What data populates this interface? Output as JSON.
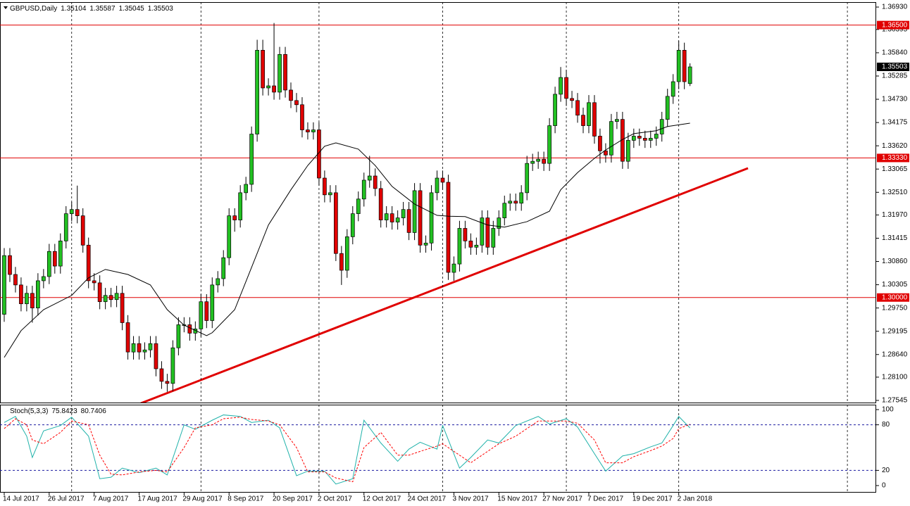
{
  "chart_data": [
    {
      "type": "candlestick",
      "title": "GBPUSD,Daily",
      "xlim": [
        -0.75,
        155
      ],
      "ylim": [
        1.27494,
        1.37048
      ],
      "up_color": "#22c022",
      "down_color": "#e00000",
      "xgrid": [
        12,
        35,
        56,
        78,
        100,
        120,
        150
      ],
      "yticks": [
        {
          "value": 1.3693,
          "label": "1.36930"
        },
        1.36395,
        {
          "value": 1.3584,
          "label": "1.35840"
        },
        1.35285,
        {
          "value": 1.3473,
          "label": "1.34730"
        },
        1.34175,
        {
          "value": 1.3362,
          "label": "1.33620"
        },
        1.33065,
        {
          "value": 1.3251,
          "label": "1.32510"
        },
        {
          "value": 1.3197,
          "label": "1.31970"
        },
        1.31415,
        {
          "value": 1.3086,
          "label": "1.30860"
        },
        1.30305,
        {
          "value": 1.2975,
          "label": "1.29750"
        },
        1.29195,
        {
          "value": 1.2864,
          "label": "1.28640"
        },
        {
          "value": 1.281,
          "label": "1.28100"
        },
        1.27545
      ],
      "hlines": [
        {
          "value": 1.365,
          "label": "1.36500"
        },
        {
          "value": 1.3333,
          "label": "1.33330"
        },
        {
          "value": 1.3,
          "label": "1.30000"
        }
      ],
      "hline_color": "#e00000",
      "open": [
        1.296,
        1.31,
        1.3055,
        1.303,
        1.2985,
        1.301,
        1.2975,
        1.304,
        1.305,
        1.311,
        1.3075,
        1.3135,
        1.32,
        1.321,
        1.3195,
        1.3125,
        1.304,
        1.3035,
        1.299,
        1.3005,
        1.2995,
        1.301,
        1.294,
        1.287,
        1.289,
        1.287,
        1.2875,
        1.289,
        1.283,
        1.28,
        1.2795,
        1.288,
        1.2935,
        1.2935,
        1.2915,
        1.2925,
        1.299,
        1.2945,
        1.303,
        1.3045,
        1.3095,
        1.3195,
        1.3185,
        1.325,
        1.327,
        1.339,
        1.359,
        1.35,
        1.3505,
        1.349,
        1.358,
        1.3495,
        1.347,
        1.346,
        1.34,
        1.3395,
        1.34,
        1.3285,
        1.3245,
        1.325,
        1.3105,
        1.3065,
        1.3145,
        1.32,
        1.3235,
        1.328,
        1.329,
        1.326,
        1.3185,
        1.32,
        1.318,
        1.319,
        1.321,
        1.3155,
        1.3255,
        1.3125,
        1.313,
        1.325,
        1.3285,
        1.3275,
        1.306,
        1.308,
        1.3165,
        1.3135,
        1.312,
        1.3125,
        1.319,
        1.312,
        1.3165,
        1.319,
        1.3225,
        1.323,
        1.3225,
        1.325,
        1.332,
        1.3325,
        1.333,
        1.332,
        1.341,
        1.3485,
        1.3525,
        1.3475,
        1.347,
        1.3435,
        1.341,
        1.3465,
        1.3385,
        1.335,
        1.334,
        1.342,
        1.3425,
        1.3325,
        1.3375,
        1.3385,
        1.338,
        1.3375,
        1.338,
        1.339,
        1.3425,
        1.348,
        1.3515,
        1.359,
        1.35104
      ],
      "high": [
        1.3118,
        1.3118,
        1.3073,
        1.3048,
        1.3028,
        1.3028,
        1.3058,
        1.3068,
        1.3128,
        1.3128,
        1.3153,
        1.3218,
        1.3228,
        1.3267,
        1.3213,
        1.3143,
        1.3058,
        1.3053,
        1.3023,
        1.3023,
        1.3028,
        1.3028,
        1.2958,
        1.2908,
        1.2908,
        1.2893,
        1.2908,
        1.2908,
        1.2848,
        1.2818,
        1.2898,
        1.2953,
        1.2953,
        1.2953,
        1.2943,
        1.3008,
        1.3008,
        1.3048,
        1.3063,
        1.3113,
        1.3213,
        1.3213,
        1.3268,
        1.3288,
        1.3408,
        1.3615,
        1.3615,
        1.3523,
        1.3655,
        1.3598,
        1.3598,
        1.3513,
        1.3488,
        1.3478,
        1.3418,
        1.3418,
        1.3418,
        1.3303,
        1.3268,
        1.3268,
        1.3123,
        1.3163,
        1.3218,
        1.3253,
        1.3298,
        1.3338,
        1.3308,
        1.3278,
        1.3218,
        1.3218,
        1.3208,
        1.3228,
        1.3228,
        1.3273,
        1.3273,
        1.3148,
        1.3268,
        1.3303,
        1.3303,
        1.3293,
        1.3098,
        1.3183,
        1.3183,
        1.3153,
        1.3143,
        1.3208,
        1.3208,
        1.3183,
        1.3208,
        1.3243,
        1.3248,
        1.3248,
        1.3268,
        1.3338,
        1.3343,
        1.3348,
        1.3348,
        1.3428,
        1.3503,
        1.355,
        1.3543,
        1.3493,
        1.3488,
        1.3453,
        1.3483,
        1.3483,
        1.3403,
        1.3368,
        1.3438,
        1.3443,
        1.3443,
        1.3393,
        1.3403,
        1.3403,
        1.3398,
        1.3398,
        1.3408,
        1.3443,
        1.3498,
        1.3533,
        1.3612,
        1.3608,
        1.35587
      ],
      "low": [
        1.2942,
        1.3037,
        1.3012,
        1.2967,
        1.2967,
        1.294,
        1.2957,
        1.3022,
        1.3032,
        1.3057,
        1.3057,
        1.3117,
        1.3182,
        1.3177,
        1.3107,
        1.3022,
        1.3017,
        1.2972,
        1.2972,
        1.2977,
        1.2977,
        1.2922,
        1.2852,
        1.2852,
        1.2852,
        1.2852,
        1.2857,
        1.2812,
        1.2782,
        1.2775,
        1.2777,
        1.2862,
        1.2917,
        1.2897,
        1.2897,
        1.2907,
        1.2927,
        1.2927,
        1.3012,
        1.3027,
        1.3077,
        1.3157,
        1.3167,
        1.3232,
        1.3252,
        1.3372,
        1.3482,
        1.3482,
        1.3472,
        1.3472,
        1.3477,
        1.3452,
        1.3442,
        1.3382,
        1.3377,
        1.3377,
        1.3267,
        1.3227,
        1.3227,
        1.3087,
        1.303,
        1.3047,
        1.3127,
        1.3182,
        1.3217,
        1.3262,
        1.3242,
        1.3167,
        1.3167,
        1.3162,
        1.3162,
        1.3172,
        1.3137,
        1.3137,
        1.3107,
        1.3107,
        1.3112,
        1.3232,
        1.3257,
        1.3042,
        1.304,
        1.3062,
        1.3117,
        1.3102,
        1.3102,
        1.3107,
        1.3102,
        1.3102,
        1.3147,
        1.3172,
        1.3207,
        1.3207,
        1.3207,
        1.3232,
        1.3302,
        1.3307,
        1.3302,
        1.3302,
        1.3392,
        1.3467,
        1.3457,
        1.3452,
        1.3417,
        1.3392,
        1.3392,
        1.3367,
        1.332,
        1.3322,
        1.3322,
        1.3402,
        1.3307,
        1.3307,
        1.3357,
        1.3362,
        1.3357,
        1.3357,
        1.3362,
        1.3372,
        1.3407,
        1.3462,
        1.3497,
        1.3497,
        1.35045
      ],
      "close": [
        1.31,
        1.3055,
        1.303,
        1.2985,
        1.301,
        1.2975,
        1.304,
        1.305,
        1.311,
        1.3075,
        1.3135,
        1.32,
        1.321,
        1.3195,
        1.3125,
        1.304,
        1.3035,
        1.299,
        1.3005,
        1.2995,
        1.301,
        1.294,
        1.287,
        1.289,
        1.287,
        1.2875,
        1.289,
        1.283,
        1.28,
        1.2795,
        1.288,
        1.2935,
        1.2935,
        1.2915,
        1.2925,
        1.299,
        1.2945,
        1.303,
        1.3045,
        1.3095,
        1.3195,
        1.3185,
        1.325,
        1.327,
        1.339,
        1.359,
        1.35,
        1.3505,
        1.349,
        1.358,
        1.3495,
        1.347,
        1.346,
        1.34,
        1.3395,
        1.34,
        1.3285,
        1.3245,
        1.325,
        1.3105,
        1.3065,
        1.3145,
        1.32,
        1.3235,
        1.328,
        1.329,
        1.326,
        1.3185,
        1.32,
        1.318,
        1.319,
        1.321,
        1.3155,
        1.3255,
        1.3125,
        1.313,
        1.325,
        1.3285,
        1.3275,
        1.306,
        1.308,
        1.3165,
        1.3135,
        1.312,
        1.3125,
        1.319,
        1.312,
        1.3165,
        1.319,
        1.3225,
        1.323,
        1.3225,
        1.325,
        1.332,
        1.3325,
        1.333,
        1.332,
        1.341,
        1.3485,
        1.3525,
        1.3475,
        1.347,
        1.3435,
        1.341,
        1.3465,
        1.3385,
        1.335,
        1.334,
        1.342,
        1.3425,
        1.3325,
        1.3375,
        1.3385,
        1.338,
        1.3375,
        1.338,
        1.339,
        1.3425,
        1.348,
        1.3515,
        1.359,
        1.3515,
        1.35503
      ],
      "ma": {
        "color": "#000000",
        "x": [
          0,
          3,
          7,
          12,
          15,
          18,
          22,
          26,
          29,
          32,
          36,
          37,
          41,
          43,
          47,
          51,
          54,
          57,
          59,
          63,
          66,
          69,
          73,
          77,
          79,
          82,
          86,
          89,
          93,
          97,
          99,
          102,
          105,
          107,
          110,
          112,
          116,
          118,
          122
        ],
        "values": [
          1.2857,
          1.2921,
          1.2971,
          1.3005,
          1.3047,
          1.3067,
          1.3055,
          1.303,
          1.2971,
          1.2934,
          1.2909,
          1.2916,
          1.2971,
          1.3038,
          1.3173,
          1.3257,
          1.3315,
          1.3361,
          1.3369,
          1.3354,
          1.3315,
          1.3265,
          1.3223,
          1.3196,
          1.3194,
          1.3193,
          1.3173,
          1.3168,
          1.3181,
          1.3206,
          1.3257,
          1.3298,
          1.3332,
          1.3352,
          1.3377,
          1.3391,
          1.3398,
          1.3408,
          1.3416
        ]
      }
    },
    {
      "type": "line",
      "title": "Stoch(5,3,3)",
      "xlim": [
        -0.75,
        155
      ],
      "ylim": [
        -9.3,
        106.5
      ],
      "xgrid": [
        12,
        35,
        56,
        78,
        100,
        120,
        150
      ],
      "yticks": [
        100,
        80,
        20,
        0
      ],
      "levels": [
        80,
        20
      ],
      "level_color": "#1a1aa0",
      "xticks": [
        {
          "value": 0,
          "label": "14 Jul 2017"
        },
        {
          "value": 8,
          "label": "26 Jul 2017"
        },
        {
          "value": 16,
          "label": "7 Aug 2017"
        },
        {
          "value": 24,
          "label": "17 Aug 2017"
        },
        {
          "value": 32,
          "label": "29 Aug 2017"
        },
        {
          "value": 40,
          "label": "8 Sep 2017"
        },
        {
          "value": 48,
          "label": "20 Sep 2017"
        },
        {
          "value": 56,
          "label": "2 Oct 2017"
        },
        {
          "value": 64,
          "label": "12 Oct 2017"
        },
        {
          "value": 72,
          "label": "24 Oct 2017"
        },
        {
          "value": 80,
          "label": "3 Nov 2017"
        },
        {
          "value": 88,
          "label": "15 Nov 2017"
        },
        {
          "value": 96,
          "label": "27 Nov 2017"
        },
        {
          "value": 104,
          "label": "7 Dec 2017"
        },
        {
          "value": 112,
          "label": "19 Dec 2017"
        },
        {
          "value": 120,
          "label": "2 Jan 2018"
        }
      ],
      "series": [
        {
          "color": "#20b2aa",
          "dashed": false,
          "x": [
            0,
            2,
            4,
            5,
            7,
            10,
            12,
            15,
            17,
            19,
            21,
            24,
            27,
            29,
            32,
            34,
            37,
            39,
            42,
            44,
            47,
            49,
            52,
            54,
            57,
            59,
            62,
            64,
            67,
            70,
            72,
            74,
            77,
            78,
            81,
            83,
            86,
            88,
            91,
            95,
            97,
            100,
            102,
            105,
            107,
            110,
            112,
            115,
            117,
            119,
            120,
            122
          ],
          "values": [
            83,
            91,
            65,
            37,
            72,
            79,
            90,
            65,
            9,
            11,
            23,
            17,
            23,
            14,
            80,
            74,
            86,
            93,
            91,
            83,
            86,
            76,
            13,
            19,
            19,
            2,
            9,
            86,
            56,
            32,
            48,
            57,
            48,
            79,
            23,
            37,
            60,
            56,
            79,
            91,
            81,
            88,
            77,
            42,
            19,
            39,
            42,
            51,
            56,
            79,
            91,
            75.8423
          ]
        },
        {
          "color": "#ff0000",
          "dashed": true,
          "x": [
            0,
            2,
            4,
            5,
            7,
            10,
            12,
            15,
            17,
            19,
            21,
            24,
            27,
            29,
            32,
            34,
            37,
            39,
            42,
            44,
            47,
            49,
            52,
            54,
            57,
            59,
            62,
            64,
            67,
            70,
            72,
            74,
            77,
            78,
            81,
            83,
            86,
            88,
            91,
            95,
            97,
            100,
            102,
            105,
            107,
            110,
            112,
            115,
            117,
            119,
            120,
            122
          ],
          "values": [
            75,
            88,
            80,
            60,
            55,
            70,
            85,
            80,
            40,
            15,
            14,
            18,
            20,
            18,
            50,
            76,
            80,
            88,
            90,
            87,
            85,
            80,
            50,
            18,
            18,
            10,
            5,
            50,
            70,
            40,
            40,
            45,
            52,
            55,
            40,
            30,
            45,
            55,
            65,
            85,
            85,
            85,
            82,
            60,
            30,
            30,
            38,
            46,
            52,
            62,
            75,
            80.7406
          ]
        }
      ]
    }
  ]
}
